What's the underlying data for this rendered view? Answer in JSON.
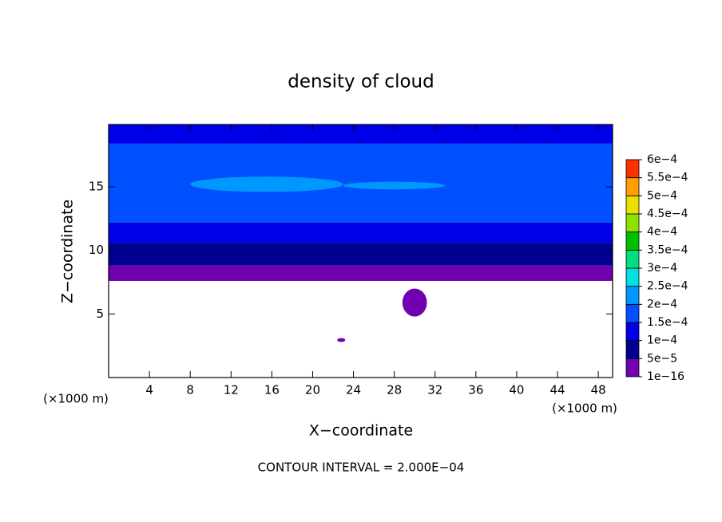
{
  "chart_data": {
    "type": "contour",
    "title": "density of cloud",
    "xlabel": "X−coordinate",
    "ylabel": "Z−coordinate",
    "unit_label": "(×1000 m)",
    "note": "CONTOUR INTERVAL = 2.000E−04",
    "xlim": [
      0,
      49.4
    ],
    "ylim": [
      0,
      19.9
    ],
    "xticks": [
      4,
      8,
      12,
      16,
      20,
      24,
      28,
      32,
      36,
      40,
      44,
      48
    ],
    "yticks": [
      5,
      10,
      15
    ],
    "colorbar": {
      "levels": [
        {
          "value": 1e-16,
          "label": "1e−16"
        },
        {
          "value": 5e-05,
          "label": "5e−5"
        },
        {
          "value": 0.0001,
          "label": "1e−4"
        },
        {
          "value": 0.00015,
          "label": "1.5e−4"
        },
        {
          "value": 0.0002,
          "label": "2e−4"
        },
        {
          "value": 0.00025,
          "label": "2.5e−4"
        },
        {
          "value": 0.0003,
          "label": "3e−4"
        },
        {
          "value": 0.00035,
          "label": "3.5e−4"
        },
        {
          "value": 0.0004,
          "label": "4e−4"
        },
        {
          "value": 0.00045,
          "label": "4.5e−4"
        },
        {
          "value": 0.0005,
          "label": "5e−4"
        },
        {
          "value": 0.00055,
          "label": "5.5e−4"
        },
        {
          "value": 0.0006,
          "label": "6e−4"
        }
      ],
      "colors": [
        "#7000b0",
        "#000090",
        "#0000e8",
        "#0050ff",
        "#0098ff",
        "#00e0e0",
        "#00e080",
        "#00c000",
        "#90e000",
        "#e8e000",
        "#ffa000",
        "#ff3000",
        "#ff8080"
      ]
    },
    "regions": [
      {
        "x": [
          0,
          49.4
        ],
        "z": [
          7.6,
          8.8
        ],
        "value": 2e-05
      },
      {
        "x": [
          0,
          49.4
        ],
        "z": [
          8.8,
          10.6
        ],
        "value": 7e-05
      },
      {
        "x": [
          0,
          49.4
        ],
        "z": [
          10.6,
          12.2
        ],
        "value": 0.00012
      },
      {
        "x": [
          0,
          49.4
        ],
        "z": [
          12.2,
          18.4
        ],
        "value": 0.00017
      },
      {
        "x": [
          0,
          49.4
        ],
        "z": [
          18.4,
          19.9
        ],
        "value": 0.00013
      },
      {
        "x": [
          8,
          23
        ],
        "z": [
          14.6,
          15.8
        ],
        "value": 0.00022
      },
      {
        "x": [
          23,
          33
        ],
        "z": [
          14.8,
          15.4
        ],
        "value": 0.00021
      },
      {
        "x": [
          28.8,
          31.2
        ],
        "z": [
          4.8,
          7
        ],
        "value": 2e-05
      },
      {
        "x": [
          22.4,
          23.2
        ],
        "z": [
          2.8,
          3.1
        ],
        "value": 2e-05
      }
    ]
  }
}
